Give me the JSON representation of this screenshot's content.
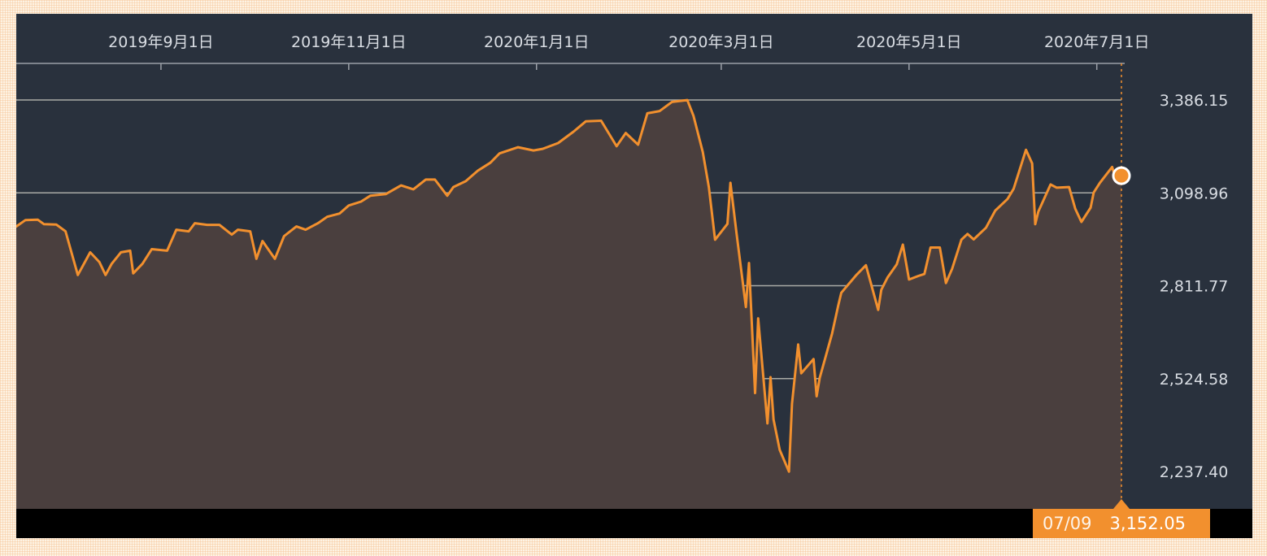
{
  "chart_data": {
    "type": "area",
    "title": "",
    "xlabel": "",
    "ylabel": "",
    "x_ticks": [
      "2019年9月1日",
      "2019年11月1日",
      "2020年1月1日",
      "2020年3月1日",
      "2020年5月1日",
      "2020年7月1日"
    ],
    "x_tick_dates": [
      "2019-09-01",
      "2019-11-01",
      "2020-01-01",
      "2020-03-01",
      "2020-05-01",
      "2020-07-01"
    ],
    "x_range": [
      "2019-07-16",
      "2020-07-09"
    ],
    "y_ticks": [
      "3,386.15",
      "3,098.96",
      "2,811.77",
      "2,524.58",
      "2,237.40"
    ],
    "y_tick_values": [
      3386.15,
      3098.96,
      2811.77,
      2524.58,
      2237.4
    ],
    "ylim": [
      2125,
      3500
    ],
    "grid": true,
    "series": [
      {
        "values": [
          [
            "2019-07-16",
            2995
          ],
          [
            "2019-07-19",
            3015
          ],
          [
            "2019-07-23",
            3016
          ],
          [
            "2019-07-25",
            3002
          ],
          [
            "2019-07-29",
            3001
          ],
          [
            "2019-08-01",
            2980
          ],
          [
            "2019-08-05",
            2845
          ],
          [
            "2019-08-07",
            2880
          ],
          [
            "2019-08-09",
            2915
          ],
          [
            "2019-08-12",
            2885
          ],
          [
            "2019-08-14",
            2845
          ],
          [
            "2019-08-16",
            2880
          ],
          [
            "2019-08-19",
            2915
          ],
          [
            "2019-08-22",
            2920
          ],
          [
            "2019-08-23",
            2850
          ],
          [
            "2019-08-26",
            2880
          ],
          [
            "2019-08-29",
            2925
          ],
          [
            "2019-09-03",
            2920
          ],
          [
            "2019-09-06",
            2985
          ],
          [
            "2019-09-10",
            2980
          ],
          [
            "2019-09-12",
            3005
          ],
          [
            "2019-09-16",
            3000
          ],
          [
            "2019-09-20",
            3000
          ],
          [
            "2019-09-24",
            2970
          ],
          [
            "2019-09-26",
            2985
          ],
          [
            "2019-09-30",
            2980
          ],
          [
            "2019-10-02",
            2895
          ],
          [
            "2019-10-04",
            2950
          ],
          [
            "2019-10-08",
            2895
          ],
          [
            "2019-10-11",
            2965
          ],
          [
            "2019-10-15",
            2995
          ],
          [
            "2019-10-18",
            2985
          ],
          [
            "2019-10-22",
            3005
          ],
          [
            "2019-10-25",
            3025
          ],
          [
            "2019-10-29",
            3035
          ],
          [
            "2019-11-01",
            3060
          ],
          [
            "2019-11-05",
            3072
          ],
          [
            "2019-11-08",
            3090
          ],
          [
            "2019-11-13",
            3095
          ],
          [
            "2019-11-18",
            3122
          ],
          [
            "2019-11-22",
            3110
          ],
          [
            "2019-11-26",
            3140
          ],
          [
            "2019-11-29",
            3140
          ],
          [
            "2019-12-03",
            3090
          ],
          [
            "2019-12-05",
            3117
          ],
          [
            "2019-12-09",
            3135
          ],
          [
            "2019-12-13",
            3168
          ],
          [
            "2019-12-17",
            3192
          ],
          [
            "2019-12-20",
            3221
          ],
          [
            "2019-12-26",
            3240
          ],
          [
            "2019-12-31",
            3230
          ],
          [
            "2020-01-03",
            3235
          ],
          [
            "2020-01-08",
            3253
          ],
          [
            "2020-01-13",
            3288
          ],
          [
            "2020-01-17",
            3320
          ],
          [
            "2020-01-22",
            3322
          ],
          [
            "2020-01-27",
            3243
          ],
          [
            "2020-01-30",
            3284
          ],
          [
            "2020-02-03",
            3248
          ],
          [
            "2020-02-06",
            3345
          ],
          [
            "2020-02-10",
            3352
          ],
          [
            "2020-02-14",
            3380
          ],
          [
            "2020-02-19",
            3386
          ],
          [
            "2020-02-21",
            3337
          ],
          [
            "2020-02-24",
            3225
          ],
          [
            "2020-02-26",
            3116
          ],
          [
            "2020-02-28",
            2954
          ],
          [
            "2020-03-03",
            3003
          ],
          [
            "2020-03-04",
            3130
          ],
          [
            "2020-03-06",
            2972
          ],
          [
            "2020-03-09",
            2746
          ],
          [
            "2020-03-10",
            2882
          ],
          [
            "2020-03-12",
            2480
          ],
          [
            "2020-03-13",
            2711
          ],
          [
            "2020-03-16",
            2386
          ],
          [
            "2020-03-17",
            2529
          ],
          [
            "2020-03-18",
            2398
          ],
          [
            "2020-03-20",
            2304
          ],
          [
            "2020-03-23",
            2237
          ],
          [
            "2020-03-24",
            2447
          ],
          [
            "2020-03-26",
            2630
          ],
          [
            "2020-03-27",
            2541
          ],
          [
            "2020-03-31",
            2585
          ],
          [
            "2020-04-01",
            2470
          ],
          [
            "2020-04-02",
            2527
          ],
          [
            "2020-04-06",
            2664
          ],
          [
            "2020-04-08",
            2750
          ],
          [
            "2020-04-09",
            2790
          ],
          [
            "2020-04-14",
            2846
          ],
          [
            "2020-04-17",
            2875
          ],
          [
            "2020-04-21",
            2737
          ],
          [
            "2020-04-22",
            2799
          ],
          [
            "2020-04-24",
            2837
          ],
          [
            "2020-04-27",
            2878
          ],
          [
            "2020-04-29",
            2939
          ],
          [
            "2020-05-01",
            2831
          ],
          [
            "2020-05-04",
            2842
          ],
          [
            "2020-05-06",
            2848
          ],
          [
            "2020-05-08",
            2930
          ],
          [
            "2020-05-11",
            2930
          ],
          [
            "2020-05-13",
            2820
          ],
          [
            "2020-05-15",
            2864
          ],
          [
            "2020-05-18",
            2954
          ],
          [
            "2020-05-20",
            2972
          ],
          [
            "2020-05-22",
            2955
          ],
          [
            "2020-05-26",
            2991
          ],
          [
            "2020-05-29",
            3044
          ],
          [
            "2020-06-02",
            3080
          ],
          [
            "2020-06-04",
            3112
          ],
          [
            "2020-06-08",
            3232
          ],
          [
            "2020-06-10",
            3190
          ],
          [
            "2020-06-11",
            3002
          ],
          [
            "2020-06-12",
            3041
          ],
          [
            "2020-06-16",
            3125
          ],
          [
            "2020-06-18",
            3115
          ],
          [
            "2020-06-22",
            3117
          ],
          [
            "2020-06-24",
            3050
          ],
          [
            "2020-06-26",
            3009
          ],
          [
            "2020-06-29",
            3053
          ],
          [
            "2020-06-30",
            3100
          ],
          [
            "2020-07-02",
            3130
          ],
          [
            "2020-07-06",
            3179
          ],
          [
            "2020-07-07",
            3145
          ],
          [
            "2020-07-08",
            3169
          ],
          [
            "2020-07-09",
            3152
          ]
        ]
      }
    ],
    "line_color": "#f2902e",
    "area_fill": "#4a3f3e",
    "background": "#29313d",
    "grid_color": "#a9aaa6",
    "last_point": {
      "date": "2020-07-09",
      "value": 3152.05
    }
  },
  "tooltip": {
    "date": "07/09",
    "value": "3,152.05"
  }
}
